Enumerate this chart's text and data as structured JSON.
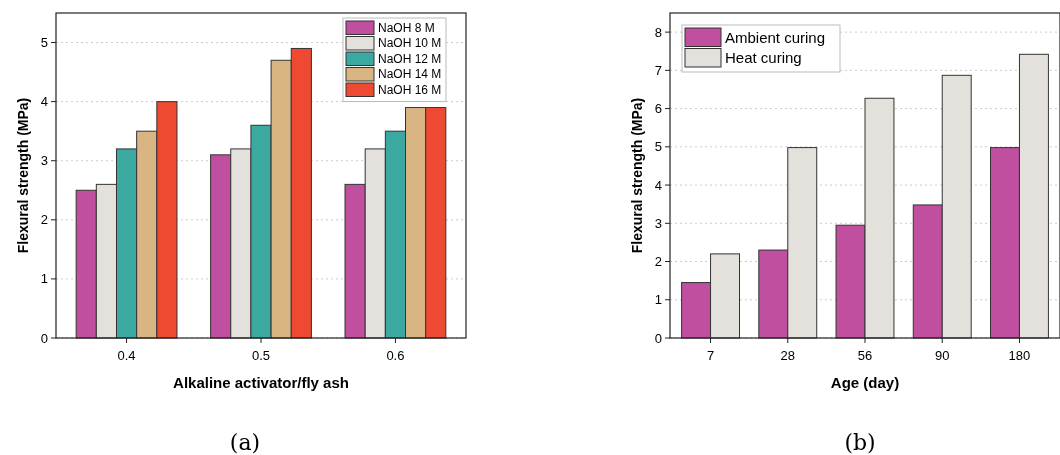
{
  "chart_data": [
    {
      "type": "bar",
      "xlabel": "Alkaline activator/fly ash",
      "ylabel": "Flexural strength (MPa)",
      "categories": [
        "0.4",
        "0.5",
        "0.6"
      ],
      "series": [
        {
          "name": "NaOH 8 M",
          "color": "#c04fa0",
          "values": [
            2.5,
            3.1,
            2.6
          ]
        },
        {
          "name": "NaOH 10 M",
          "color": "#e4e0dc",
          "values": [
            2.6,
            3.2,
            3.2
          ]
        },
        {
          "name": "NaOH 12 M",
          "color": "#3ba9a0",
          "values": [
            3.2,
            3.6,
            3.5
          ]
        },
        {
          "name": "NaOH 14 M",
          "color": "#d9b583",
          "values": [
            3.5,
            4.7,
            3.9
          ]
        },
        {
          "name": "NaOH 16 M",
          "color": "#ee4a32",
          "values": [
            4.0,
            4.9,
            3.9
          ]
        }
      ],
      "ylim": [
        0,
        5.5
      ],
      "yticks": [
        0,
        1,
        2,
        3,
        4,
        5
      ],
      "grid": "y",
      "legend": "top right",
      "annotations": [
        "(a)"
      ]
    },
    {
      "type": "bar",
      "xlabel": "Age (day)",
      "ylabel": "Flexural strength (MPa)",
      "categories": [
        "7",
        "28",
        "56",
        "90",
        "180"
      ],
      "series": [
        {
          "name": "Ambient curing",
          "color": "#c04fa0",
          "values": [
            1.45,
            2.3,
            2.95,
            3.48,
            4.98
          ]
        },
        {
          "name": "Heat curing",
          "color": "#e4e0dc",
          "values": [
            2.2,
            4.98,
            6.27,
            6.87,
            7.42
          ]
        }
      ],
      "ylim": [
        0,
        8.5
      ],
      "yticks": [
        0,
        1,
        2,
        3,
        4,
        5,
        6,
        7,
        8
      ],
      "grid": "y",
      "legend": "top left",
      "annotations": [
        "(b)"
      ]
    }
  ]
}
